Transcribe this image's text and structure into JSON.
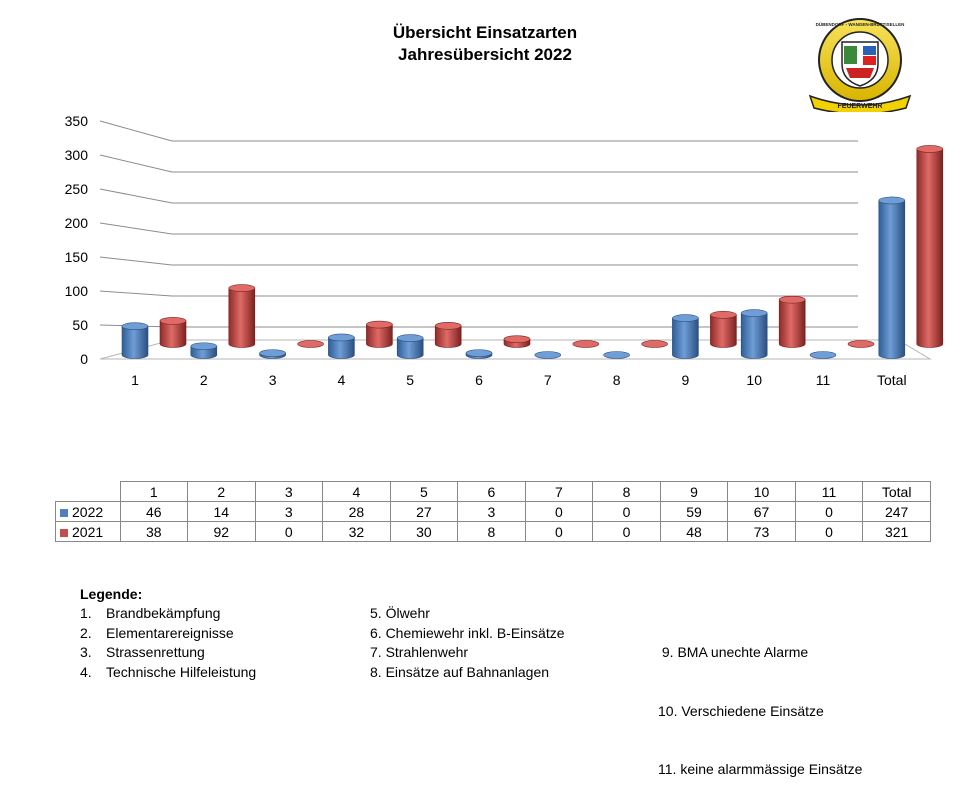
{
  "title": "Übersicht Einsatzarten",
  "subtitle": "Jahresübersicht 2022",
  "logo": {
    "text_top": "DÜBENDORF - WANGEN-BRÜTTISELLEN",
    "text_banner": "FEUERWEHR",
    "icon": "fire-department-crest"
  },
  "chart_data": {
    "type": "bar",
    "categories": [
      "1",
      "2",
      "3",
      "4",
      "5",
      "6",
      "7",
      "8",
      "9",
      "10",
      "11",
      "Total"
    ],
    "series": [
      {
        "name": "2022",
        "color": "#4F81BD",
        "values": [
          46,
          14,
          3,
          28,
          27,
          3,
          0,
          0,
          59,
          67,
          0,
          247
        ]
      },
      {
        "name": "2021",
        "color": "#C0504D",
        "values": [
          38,
          92,
          0,
          32,
          30,
          8,
          0,
          0,
          48,
          73,
          0,
          321
        ]
      }
    ],
    "yticks": [
      "0",
      "50",
      "100",
      "150",
      "200",
      "250",
      "300",
      "350"
    ],
    "ylim": [
      0,
      350
    ],
    "grid": true,
    "style": "3d-cylinder",
    "xlabel": "",
    "ylabel": ""
  },
  "table": {
    "headers": [
      "1",
      "2",
      "3",
      "4",
      "5",
      "6",
      "7",
      "8",
      "9",
      "10",
      "11",
      "Total"
    ],
    "rows": [
      {
        "label": "2022",
        "values": [
          "46",
          "14",
          "3",
          "28",
          "27",
          "3",
          "0",
          "0",
          "59",
          "67",
          "0",
          "247"
        ]
      },
      {
        "label": "2021",
        "values": [
          "38",
          "92",
          "0",
          "32",
          "30",
          "8",
          "0",
          "0",
          "48",
          "73",
          "0",
          "321"
        ]
      }
    ]
  },
  "legend": {
    "title": "Legende:",
    "col1": [
      {
        "num": "1.",
        "text": "Brandbekämpfung"
      },
      {
        "num": "2.",
        "text": "Elementarereignisse"
      },
      {
        "num": "3.",
        "text": "Strassenrettung"
      },
      {
        "num": "4.",
        "text": "Technische Hilfeleistung"
      }
    ],
    "col2": [
      "5. Ölwehr",
      "6. Chemiewehr inkl. B-Einsätze",
      "7. Strahlenwehr",
      "8. Einsätze auf Bahnanlagen"
    ],
    "col3": [
      " 9. BMA unechte Alarme",
      "10. Verschiedene Einsätze",
      "11. keine alarmmässige Einsätze"
    ]
  }
}
